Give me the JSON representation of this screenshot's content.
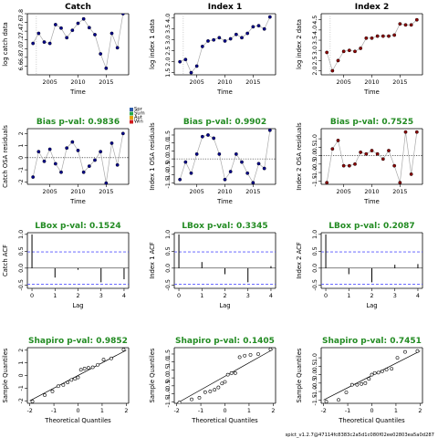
{
  "colors": {
    "bias_title": "#228B22",
    "catch_points": "#00008B",
    "index1_points": "#00008B",
    "index2_points": "#8B0000",
    "dashed_ref": "#5555ff",
    "loess": "#aaaaaa",
    "vline": "#aaaaaa"
  },
  "footer_text": "spict_v1.2.7@47114fc8383c2a5d1c080f02ee02803ea5a0d287",
  "chart_data": [
    {
      "id": "catch-data",
      "type": "scatter",
      "title": "Catch",
      "xlabel": "Time",
      "ylabel": "log catch data",
      "xlim": [
        2001,
        2019
      ],
      "ylim": [
        6.4,
        7.8
      ],
      "xticks": [
        2005,
        2010,
        2015
      ],
      "yticks": [
        6.6,
        6.8,
        7.0,
        7.2,
        7.4,
        7.6,
        7.8
      ],
      "vline": 2002.6,
      "connect": true,
      "color_key": "catch_points",
      "x": [
        2002,
        2003,
        2004,
        2005,
        2006,
        2007,
        2008,
        2009,
        2010,
        2011,
        2012,
        2013,
        2014,
        2015,
        2016,
        2017,
        2018
      ],
      "y": [
        7.12,
        7.35,
        7.15,
        7.12,
        7.55,
        7.47,
        7.25,
        7.42,
        7.58,
        7.68,
        7.48,
        7.32,
        6.88,
        6.55,
        7.35,
        7.02,
        7.8
      ]
    },
    {
      "id": "index1-data",
      "type": "scatter",
      "title": "Index 1",
      "xlabel": "Time",
      "ylabel": "log index 1 data",
      "xlim": [
        2001,
        2019
      ],
      "ylim": [
        1.4,
        4.2
      ],
      "xticks": [
        2005,
        2010,
        2015
      ],
      "yticks": [
        1.5,
        2.0,
        2.5,
        3.0,
        3.5,
        4.0
      ],
      "vline": 2002.6,
      "connect": true,
      "color_key": "index1_points",
      "x": [
        2002,
        2003,
        2004,
        2005,
        2006,
        2007,
        2008,
        2009,
        2010,
        2011,
        2012,
        2013,
        2014,
        2015,
        2016,
        2017,
        2018
      ],
      "y": [
        2.0,
        2.1,
        1.5,
        1.8,
        2.7,
        2.95,
        3.0,
        3.1,
        2.95,
        3.05,
        3.25,
        3.1,
        3.3,
        3.6,
        3.65,
        3.5,
        4.05
      ]
    },
    {
      "id": "index2-data",
      "type": "scatter",
      "title": "Index 2",
      "xlabel": "Time",
      "ylabel": "log index 2 data",
      "xlim": [
        2001,
        2019
      ],
      "ylim": [
        1.8,
        4.8
      ],
      "xticks": [
        2005,
        2010,
        2015
      ],
      "yticks": [
        2.0,
        2.5,
        3.0,
        3.5,
        4.0,
        4.5
      ],
      "vline": 2002.6,
      "connect": true,
      "color_key": "index2_points",
      "x": [
        2002,
        2003,
        2004,
        2005,
        2006,
        2007,
        2008,
        2009,
        2010,
        2011,
        2012,
        2013,
        2014,
        2015,
        2016,
        2017,
        2018
      ],
      "y": [
        2.9,
        2.0,
        2.5,
        2.95,
        3.0,
        2.95,
        3.1,
        3.6,
        3.6,
        3.7,
        3.7,
        3.7,
        3.75,
        4.3,
        4.25,
        4.25,
        4.5
      ]
    },
    {
      "id": "catch-osa",
      "type": "scatter",
      "title": "Bias p-val: 0.9836",
      "xlabel": "Time",
      "ylabel": "Catch OSA residuals",
      "xlim": [
        2001,
        2019
      ],
      "ylim": [
        -2.2,
        2.4
      ],
      "xticks": [
        2005,
        2010,
        2015
      ],
      "yticks": [
        -2,
        -1,
        0,
        1,
        2
      ],
      "zero_line": true,
      "connect": true,
      "color_key": "catch_points",
      "legend_entries": [
        "Spr",
        "Sum",
        "Aut",
        "Win"
      ],
      "x": [
        2002,
        2003,
        2004,
        2005,
        2006,
        2007,
        2008,
        2009,
        2010,
        2011,
        2012,
        2013,
        2014,
        2015,
        2016,
        2017,
        2018
      ],
      "y": [
        -1.6,
        0.5,
        -0.3,
        0.7,
        -0.5,
        -1.2,
        0.8,
        1.3,
        0.6,
        -1.2,
        -0.7,
        -0.2,
        0.5,
        -2.1,
        1.2,
        -0.6,
        2.0
      ]
    },
    {
      "id": "index1-osa",
      "type": "scatter",
      "title": "Bias p-val: 0.9902",
      "xlabel": "Time",
      "ylabel": "Index 1 OSA residuals",
      "xlim": [
        2001,
        2019
      ],
      "ylim": [
        -1.6,
        1.9
      ],
      "xticks": [
        2005,
        2010,
        2015
      ],
      "yticks": [
        -1.5,
        -1.0,
        -0.5,
        0.0,
        0.5,
        1.0,
        1.5
      ],
      "zero_line": true,
      "connect": true,
      "color_key": "index1_points",
      "x": [
        2002,
        2003,
        2004,
        2005,
        2006,
        2007,
        2008,
        2009,
        2010,
        2011,
        2012,
        2013,
        2014,
        2015,
        2016,
        2017,
        2018
      ],
      "y": [
        -1.3,
        -0.2,
        -0.9,
        0.3,
        1.4,
        1.5,
        1.3,
        0.3,
        -1.3,
        -0.8,
        0.3,
        -0.2,
        -0.9,
        -1.5,
        -0.3,
        -0.6,
        1.8
      ]
    },
    {
      "id": "index2-osa",
      "type": "scatter",
      "title": "Bias p-val: 0.7525",
      "xlabel": "Time",
      "ylabel": "Index 2 OSA residuals",
      "xlim": [
        2001,
        2019
      ],
      "ylim": [
        -1.7,
        1.6
      ],
      "xticks": [
        2005,
        2010,
        2015
      ],
      "yticks": [
        -1.5,
        -1.0,
        -0.5,
        0.0,
        0.5,
        1.0
      ],
      "zero_line": true,
      "connect": true,
      "color_key": "index2_points",
      "x": [
        2002,
        2003,
        2004,
        2005,
        2006,
        2007,
        2008,
        2009,
        2010,
        2011,
        2012,
        2013,
        2014,
        2015,
        2016,
        2017,
        2018
      ],
      "y": [
        -1.6,
        0.4,
        0.9,
        -0.6,
        -0.6,
        -0.5,
        0.2,
        0.1,
        0.3,
        0.1,
        -0.2,
        0.3,
        -0.6,
        -1.6,
        1.4,
        -1.1,
        1.4
      ]
    },
    {
      "id": "catch-acf",
      "type": "bar",
      "title": "LBox p-val: 0.1524",
      "xlabel": "Lag",
      "ylabel": "Catch ACF",
      "xlim": [
        -0.2,
        4.2
      ],
      "ylim": [
        -0.6,
        1.05
      ],
      "xticks": [
        0,
        1,
        2,
        3,
        4
      ],
      "yticks": [
        -0.5,
        0.0,
        0.5,
        1.0
      ],
      "ci": 0.48,
      "lags": [
        0,
        1,
        2,
        3,
        4
      ],
      "values": [
        1.0,
        -0.28,
        -0.05,
        -0.42,
        -0.33
      ]
    },
    {
      "id": "index1-acf",
      "type": "bar",
      "title": "LBox p-val: 0.3345",
      "xlabel": "Lag",
      "ylabel": "Index 1 ACF",
      "xlim": [
        -0.2,
        4.2
      ],
      "ylim": [
        -0.6,
        1.05
      ],
      "xticks": [
        0,
        1,
        2,
        3,
        4
      ],
      "yticks": [
        -0.5,
        0.0,
        0.5,
        1.0
      ],
      "ci": 0.48,
      "lags": [
        0,
        1,
        2,
        3,
        4
      ],
      "values": [
        1.0,
        0.18,
        -0.18,
        -0.42,
        0.06
      ]
    },
    {
      "id": "index2-acf",
      "type": "bar",
      "title": "LBox p-val: 0.2087",
      "xlabel": "Lag",
      "ylabel": "Index 2 ACF",
      "xlim": [
        -0.2,
        4.2
      ],
      "ylim": [
        -0.6,
        1.05
      ],
      "xticks": [
        0,
        1,
        2,
        3,
        4
      ],
      "yticks": [
        -0.5,
        0.0,
        0.5,
        1.0
      ],
      "ci": 0.48,
      "lags": [
        0,
        1,
        2,
        3,
        4
      ],
      "values": [
        1.0,
        -0.18,
        -0.42,
        0.1,
        0.12
      ]
    },
    {
      "id": "catch-qq",
      "type": "scatter",
      "title": "Shapiro p-val: 0.9852",
      "xlabel": "Theoretical Quantiles",
      "ylabel": "Sample Quantiles",
      "xlim": [
        -2.1,
        2.1
      ],
      "ylim": [
        -2.2,
        2.2
      ],
      "xticks": [
        -2,
        -1,
        0,
        1,
        2
      ],
      "yticks": [
        -2,
        -1,
        0,
        1,
        2
      ],
      "qq_line": [
        [
          -2.0,
          -2.0
        ],
        [
          2.0,
          2.0
        ]
      ],
      "x": [
        -1.89,
        -1.38,
        -1.06,
        -0.82,
        -0.61,
        -0.43,
        -0.27,
        -0.12,
        0.0,
        0.12,
        0.27,
        0.43,
        0.61,
        0.82,
        1.06,
        1.38,
        1.89
      ],
      "y": [
        -2.05,
        -1.55,
        -1.25,
        -0.85,
        -0.75,
        -0.55,
        -0.35,
        -0.25,
        -0.15,
        0.45,
        0.55,
        0.6,
        0.65,
        0.85,
        1.25,
        1.35,
        2.05
      ]
    },
    {
      "id": "index1-qq",
      "type": "scatter",
      "title": "Shapiro p-val: 0.1405",
      "xlabel": "Theoretical Quantiles",
      "ylabel": "Sample Quantiles",
      "xlim": [
        -2.1,
        2.1
      ],
      "ylim": [
        -1.6,
        1.9
      ],
      "xticks": [
        -2,
        -1,
        0,
        1,
        2
      ],
      "yticks": [
        -1.5,
        -1.0,
        -0.5,
        0.0,
        0.5,
        1.0,
        1.5
      ],
      "qq_line": [
        [
          -2.0,
          -1.6
        ],
        [
          2.0,
          1.8
        ]
      ],
      "x": [
        -1.89,
        -1.38,
        -1.06,
        -0.82,
        -0.61,
        -0.43,
        -0.27,
        -0.12,
        0.0,
        0.12,
        0.27,
        0.43,
        0.61,
        0.82,
        1.06,
        1.38,
        1.89
      ],
      "y": [
        -1.55,
        -1.35,
        -1.25,
        -0.9,
        -0.85,
        -0.75,
        -0.6,
        -0.35,
        -0.25,
        0.2,
        0.3,
        0.3,
        1.3,
        1.4,
        1.45,
        1.5,
        1.8
      ]
    },
    {
      "id": "index2-qq",
      "type": "scatter",
      "title": "Shapiro p-val: 0.7451",
      "xlabel": "Theoretical Quantiles",
      "ylabel": "Sample Quantiles",
      "xlim": [
        -2.1,
        2.1
      ],
      "ylim": [
        -1.7,
        1.6
      ],
      "xticks": [
        -2,
        -1,
        0,
        1,
        2
      ],
      "yticks": [
        -1.5,
        -1.0,
        -0.5,
        0.0,
        0.5,
        1.0
      ],
      "qq_line": [
        [
          -2.0,
          -1.5
        ],
        [
          2.0,
          1.4
        ]
      ],
      "x": [
        -1.89,
        -1.38,
        -1.06,
        -0.82,
        -0.61,
        -0.43,
        -0.27,
        -0.12,
        0.0,
        0.12,
        0.27,
        0.43,
        0.61,
        0.82,
        1.06,
        1.38,
        1.89
      ],
      "y": [
        -1.6,
        -1.5,
        -1.05,
        -0.6,
        -0.6,
        -0.55,
        -0.5,
        -0.25,
        0.0,
        0.1,
        0.12,
        0.2,
        0.3,
        0.35,
        1.0,
        1.35,
        1.4
      ]
    }
  ]
}
